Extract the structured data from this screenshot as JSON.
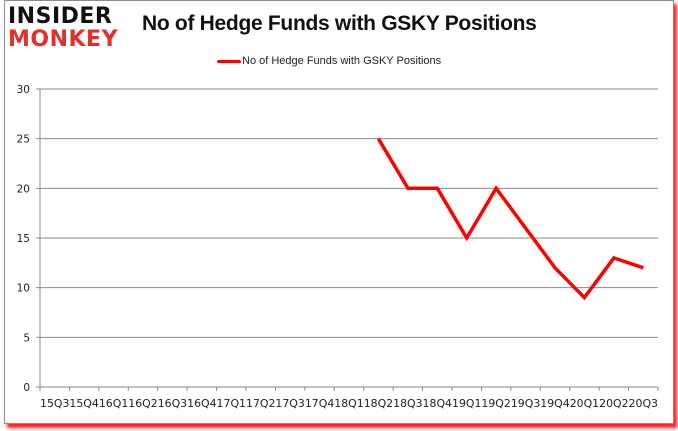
{
  "logo": {
    "line1": "INSIDER",
    "line2": "MONKEY"
  },
  "header": {
    "title": "No of Hedge Funds with GSKY Positions"
  },
  "legend": {
    "label": "No of Hedge Funds with GSKY Positions",
    "color": "#ff0000"
  },
  "chart_data": {
    "type": "line",
    "title": "No of Hedge Funds with GSKY Positions",
    "xlabel": "",
    "ylabel": "",
    "ylim": [
      0,
      30
    ],
    "yticks": [
      0,
      5,
      10,
      15,
      20,
      25,
      30
    ],
    "grid": true,
    "legend_position": "top",
    "categories": [
      "15Q3",
      "15Q4",
      "16Q1",
      "16Q2",
      "16Q3",
      "16Q4",
      "17Q1",
      "17Q2",
      "17Q3",
      "17Q4",
      "18Q1",
      "18Q2",
      "18Q3",
      "18Q4",
      "19Q1",
      "19Q2",
      "19Q3",
      "19Q4",
      "20Q1",
      "20Q2",
      "20Q3"
    ],
    "series": [
      {
        "name": "No of Hedge Funds with GSKY Positions",
        "color": "#ff0000",
        "values": [
          null,
          null,
          null,
          null,
          null,
          null,
          null,
          null,
          null,
          null,
          null,
          25,
          20,
          20,
          15,
          20,
          16,
          12,
          9,
          13,
          12
        ]
      }
    ]
  }
}
